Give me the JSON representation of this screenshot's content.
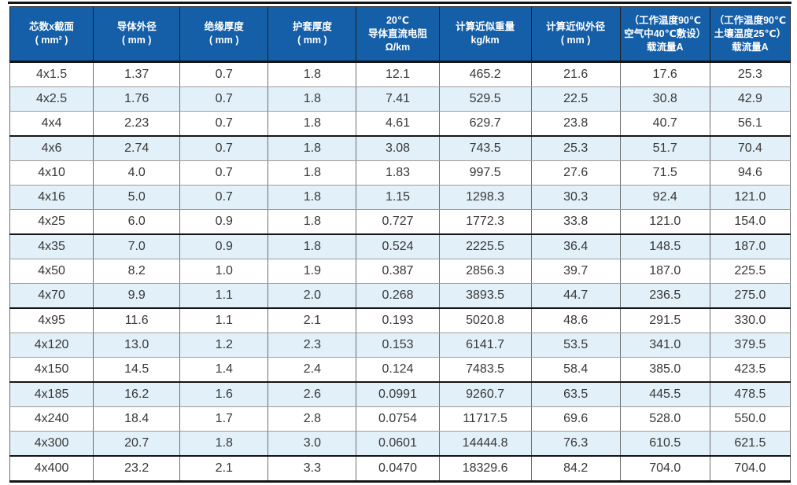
{
  "table": {
    "title_semantic": "4-core cable specifications",
    "columns": [
      {
        "lines": [
          "芯数x截面",
          "( mm² )"
        ]
      },
      {
        "lines": [
          "导体外径",
          "( mm )"
        ]
      },
      {
        "lines": [
          "绝缘厚度",
          "( mm )"
        ]
      },
      {
        "lines": [
          "护套厚度",
          "( mm )"
        ]
      },
      {
        "lines": [
          "20℃",
          "导体直流电阻",
          "Ω/km"
        ]
      },
      {
        "lines": [
          "计算近似重量",
          "kg/km"
        ]
      },
      {
        "lines": [
          "计算近似外径",
          "( mm )"
        ]
      },
      {
        "lines": [
          "（工作温度90℃",
          "空气中40℃敷设）",
          "载流量A"
        ]
      },
      {
        "lines": [
          "（工作温度90℃",
          "土壤温度25℃）",
          "载流量A"
        ]
      }
    ],
    "rows": [
      [
        "4x1.5",
        "1.37",
        "0.7",
        "1.8",
        "12.1",
        "465.2",
        "21.6",
        "17.6",
        "25.3"
      ],
      [
        "4x2.5",
        "1.76",
        "0.7",
        "1.8",
        "7.41",
        "529.5",
        "22.5",
        "30.8",
        "42.9"
      ],
      [
        "4x4",
        "2.23",
        "0.7",
        "1.8",
        "4.61",
        "629.7",
        "23.8",
        "40.7",
        "56.1"
      ],
      [
        "4x6",
        "2.74",
        "0.7",
        "1.8",
        "3.08",
        "743.5",
        "25.3",
        "51.7",
        "70.4"
      ],
      [
        "4x10",
        "4.0",
        "0.7",
        "1.8",
        "1.83",
        "997.5",
        "27.6",
        "71.5",
        "94.6"
      ],
      [
        "4x16",
        "5.0",
        "0.7",
        "1.8",
        "1.15",
        "1298.3",
        "30.3",
        "92.4",
        "121.0"
      ],
      [
        "4x25",
        "6.0",
        "0.9",
        "1.8",
        "0.727",
        "1772.3",
        "33.8",
        "121.0",
        "154.0"
      ],
      [
        "4x35",
        "7.0",
        "0.9",
        "1.8",
        "0.524",
        "2225.5",
        "36.4",
        "148.5",
        "187.0"
      ],
      [
        "4x50",
        "8.2",
        "1.0",
        "1.9",
        "0.387",
        "2856.3",
        "39.7",
        "187.0",
        "225.5"
      ],
      [
        "4x70",
        "9.9",
        "1.1",
        "2.0",
        "0.268",
        "3893.5",
        "44.7",
        "236.5",
        "275.0"
      ],
      [
        "4x95",
        "11.6",
        "1.1",
        "2.1",
        "0.193",
        "5020.8",
        "48.6",
        "291.5",
        "330.0"
      ],
      [
        "4x120",
        "13.0",
        "1.2",
        "2.3",
        "0.153",
        "6141.7",
        "53.5",
        "341.0",
        "379.5"
      ],
      [
        "4x150",
        "14.5",
        "1.4",
        "2.4",
        "0.124",
        "7483.5",
        "58.4",
        "385.0",
        "423.5"
      ],
      [
        "4x185",
        "16.2",
        "1.6",
        "2.6",
        "0.0991",
        "9260.7",
        "63.5",
        "445.5",
        "478.5"
      ],
      [
        "4x240",
        "18.4",
        "1.7",
        "2.8",
        "0.0754",
        "11717.5",
        "69.6",
        "528.0",
        "550.0"
      ],
      [
        "4x300",
        "20.7",
        "1.8",
        "3.0",
        "0.0601",
        "14444.8",
        "76.3",
        "610.5",
        "621.5"
      ],
      [
        "4x400",
        "23.2",
        "2.1",
        "3.3",
        "0.0470",
        "18329.6",
        "84.2",
        "704.0",
        "704.0"
      ]
    ],
    "group_end_row_indices": [
      2,
      6,
      9,
      12,
      15
    ],
    "colors": {
      "header_bg": "#155fa8",
      "header_text": "#ffffff",
      "stripe_bg": "#e2f0f9",
      "row_bg": "#ffffff",
      "text": "#383838",
      "thick_border": "#141414",
      "vertical_border": "#6e6e6e",
      "horizontal_border": "#9b9b9b"
    }
  }
}
